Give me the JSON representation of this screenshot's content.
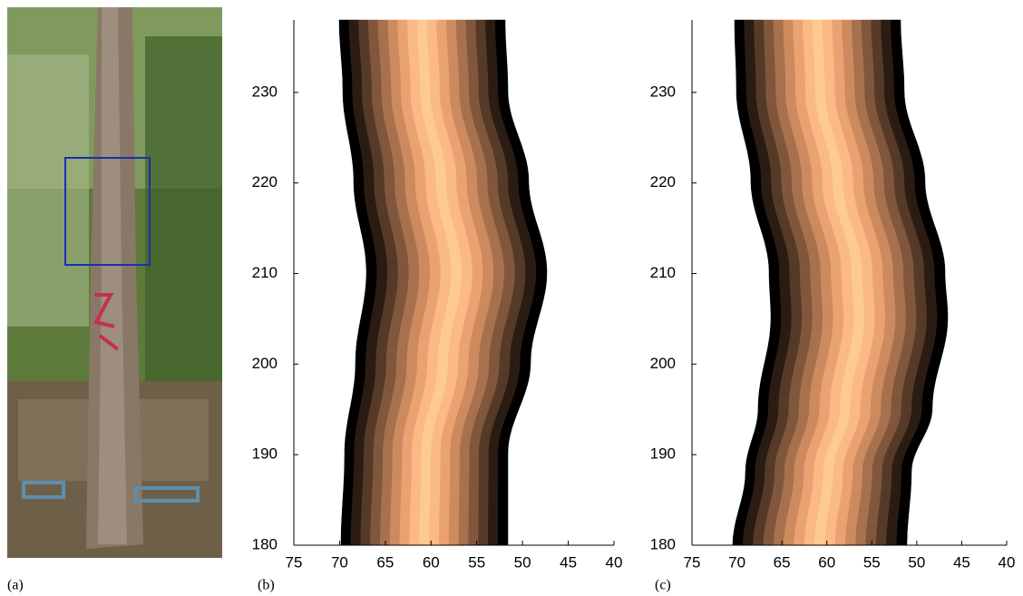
{
  "panel_labels": [
    "(a)",
    "(b)",
    "(c)"
  ],
  "chart_data": [
    {
      "type": "profile",
      "xlim": [
        75,
        40
      ],
      "ylim": [
        180,
        238
      ],
      "xticks": [
        75,
        70,
        65,
        60,
        55,
        50,
        45,
        40
      ],
      "yticks": [
        180,
        190,
        200,
        210,
        220,
        230
      ]
    },
    {
      "type": "profile",
      "xlim": [
        75,
        40
      ],
      "ylim": [
        180,
        238
      ],
      "xticks": [
        75,
        70,
        65,
        60,
        55,
        50,
        45,
        40
      ],
      "yticks": [
        180,
        190,
        200,
        210,
        220,
        230
      ]
    }
  ]
}
